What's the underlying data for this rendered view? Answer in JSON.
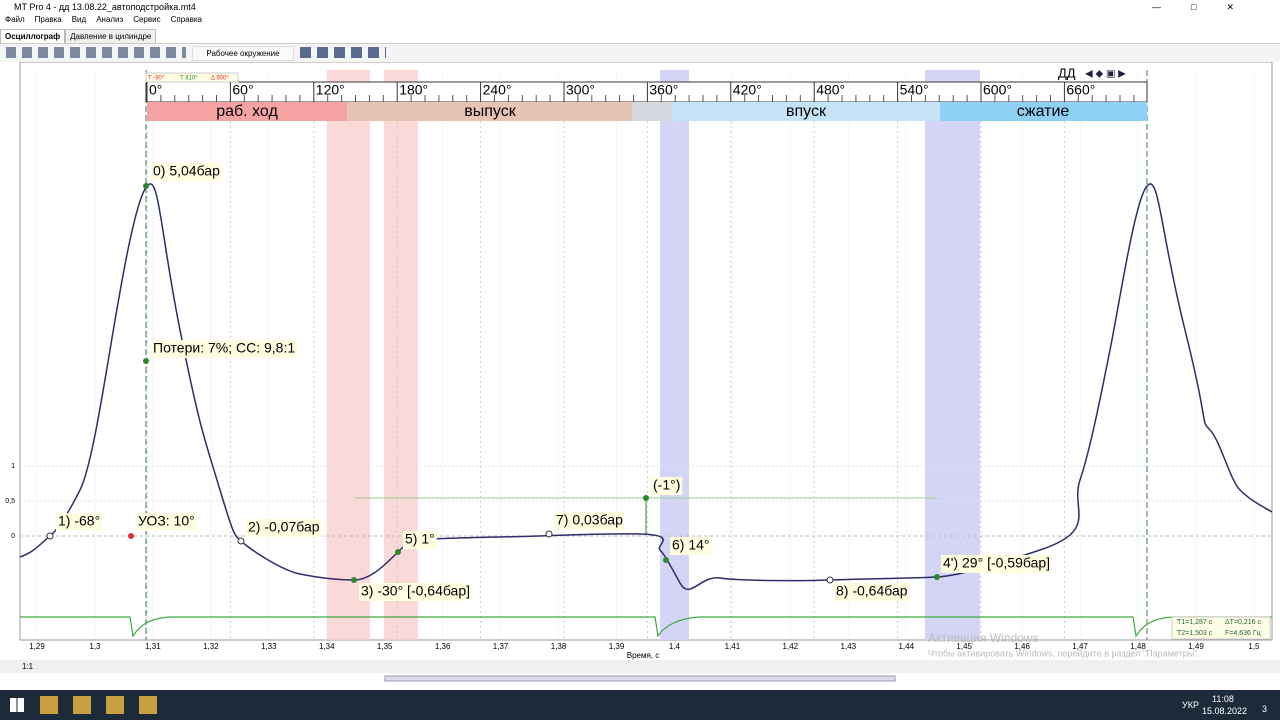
{
  "window": {
    "title": "MT Pro 4 - дд 13.08.22_автоподстройка.mt4"
  },
  "menu": [
    "Файл",
    "Правка",
    "Вид",
    "Анализ",
    "Сервис",
    "Справка"
  ],
  "tabs": [
    "Осциллограф",
    "Давление в цилиндре"
  ],
  "toolbar": {
    "workspace": "Рабочее окружение"
  },
  "plot": {
    "markers": [
      "T -90°",
      "T 810°",
      "Δ 900°"
    ],
    "channel": "ДД",
    "degree_ticks": [
      "0°",
      "60°",
      "120°",
      "180°",
      "240°",
      "300°",
      "360°",
      "420°",
      "480°",
      "540°",
      "600°",
      "660°"
    ],
    "phases": [
      "раб. ход",
      "выпуск",
      "впуск",
      "сжатие"
    ],
    "annotations": [
      "0)  5,04бар",
      "Потери: 7%; СС: 9,8:1",
      "1)  -68°",
      "УОЗ: 10°",
      "2)  -0,07бар",
      "3)  -30° [-0,64бар]",
      "5)  1°",
      "7)  0,03бар",
      "(-1°)",
      "6)  14°",
      "8)  -0,64бар",
      "4')  29° [-0,59бар]"
    ],
    "y_ticks": [
      "1",
      "0,5",
      "0"
    ],
    "x_ticks": [
      "1,29",
      "1,3",
      "1,31",
      "1,32",
      "1,33",
      "1,34",
      "1,35",
      "1,36",
      "1,37",
      "1,38",
      "1,39",
      "1,4",
      "1,41",
      "1,42",
      "1,43",
      "1,44",
      "1,45",
      "1,46",
      "1,47",
      "1,48",
      "1,49",
      "1,5"
    ],
    "x_title": "Время, с",
    "cursors": [
      "T1=1,287 с",
      "ΔT=0,216 с",
      "T2=1,503 с",
      "F=4,636 Гц"
    ],
    "watermark": [
      "Активация Windows",
      "Чтобы активировать Windows, перейдите в раздел \"Параметры\"."
    ]
  },
  "status": {
    "zoom": "1:1"
  },
  "taskbar": {
    "lang": "УКР",
    "time": "11:08",
    "date": "15.08.2022",
    "notifications": "3"
  }
}
